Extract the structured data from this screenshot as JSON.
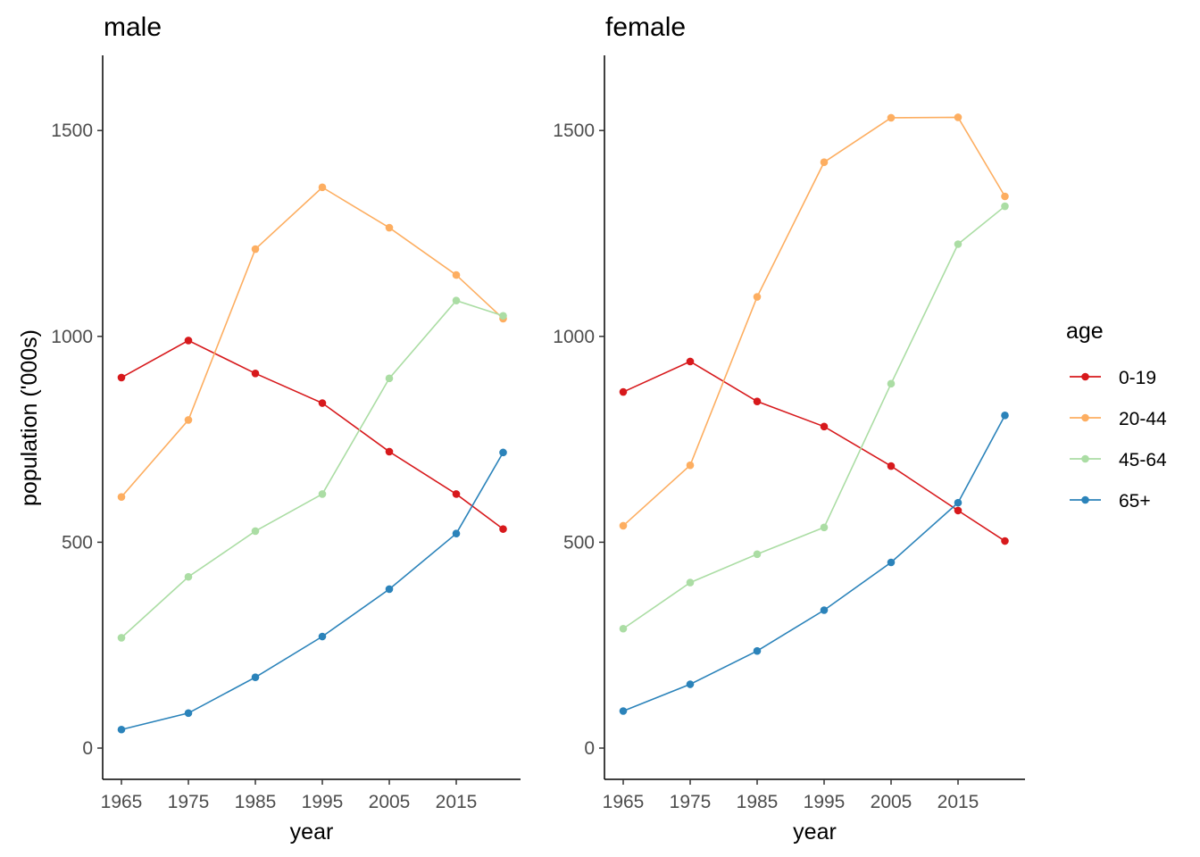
{
  "chart_data": {
    "type": "line",
    "x_label": "year",
    "y_label": "population ('000s)",
    "x_ticks": [
      1965,
      1975,
      1985,
      1995,
      2005,
      2015
    ],
    "x_range": [
      1962.5,
      2024.5
    ],
    "y_ticks": [
      0,
      500,
      1000,
      1500
    ],
    "y_range": [
      -75,
      1680
    ],
    "grid": false,
    "legend": {
      "title": "age",
      "position": "right",
      "entries": [
        {
          "name": "0-19",
          "color": "#d7191c"
        },
        {
          "name": "20-44",
          "color": "#fdae61"
        },
        {
          "name": "45-64",
          "color": "#abdda4"
        },
        {
          "name": "65+",
          "color": "#2b83ba"
        }
      ]
    },
    "x": [
      1965,
      1975,
      1985,
      1995,
      2005,
      2015,
      2022
    ],
    "panels": [
      {
        "title": "male",
        "series": [
          {
            "name": "0-19",
            "values": [
              900,
              990,
              910,
              838,
              720,
              617,
              532
            ]
          },
          {
            "name": "20-44",
            "values": [
              610,
              797,
              1212,
              1362,
              1264,
              1149,
              1043
            ]
          },
          {
            "name": "45-64",
            "values": [
              268,
              416,
              527,
              617,
              898,
              1087,
              1050
            ]
          },
          {
            "name": "65+",
            "values": [
              45,
              85,
              172,
              271,
              386,
              521,
              718
            ]
          }
        ]
      },
      {
        "title": "female",
        "series": [
          {
            "name": "0-19",
            "values": [
              865,
              939,
              842,
              781,
              685,
              577,
              503
            ]
          },
          {
            "name": "20-44",
            "values": [
              540,
              687,
              1096,
              1423,
              1531,
              1532,
              1340
            ]
          },
          {
            "name": "45-64",
            "values": [
              290,
              402,
              471,
              536,
              885,
              1224,
              1316
            ]
          },
          {
            "name": "65+",
            "values": [
              90,
              155,
              236,
              335,
              451,
              596,
              808
            ]
          }
        ]
      }
    ]
  }
}
